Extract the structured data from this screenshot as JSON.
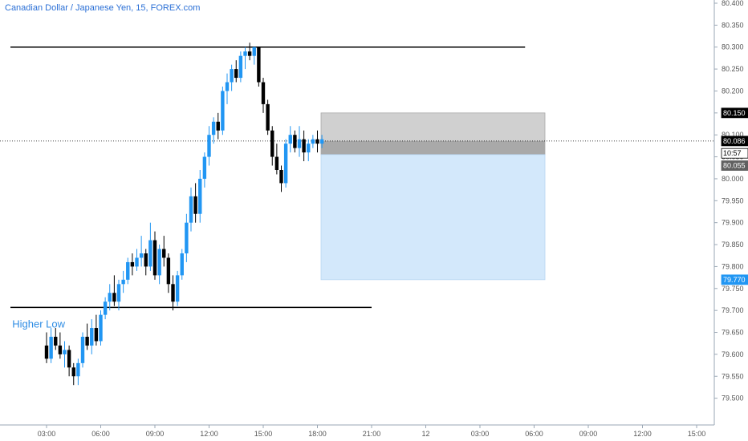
{
  "title": "Canadian Dollar / Japanese Yen, 15, FOREX.com",
  "chart_data": {
    "type": "candlestick",
    "ylim": [
      79.45,
      80.4
    ],
    "y_ticks": [
      "80.400",
      "80.350",
      "80.300",
      "80.250",
      "80.200",
      "80.150",
      "80.100",
      "80.050",
      "80.000",
      "79.950",
      "79.900",
      "79.850",
      "79.800",
      "79.750",
      "79.700",
      "79.650",
      "79.600",
      "79.550",
      "79.500"
    ],
    "x_ticks": [
      {
        "label": "03:00",
        "t": 0
      },
      {
        "label": "06:00",
        "t": 3
      },
      {
        "label": "09:00",
        "t": 6
      },
      {
        "label": "12:00",
        "t": 9
      },
      {
        "label": "15:00",
        "t": 12
      },
      {
        "label": "18:00",
        "t": 15
      },
      {
        "label": "21:00",
        "t": 18
      },
      {
        "label": "12",
        "t": 21
      },
      {
        "label": "03:00",
        "t": 24
      },
      {
        "label": "06:00",
        "t": 27
      },
      {
        "label": "09:00",
        "t": 30
      },
      {
        "label": "12:00",
        "t": 33
      },
      {
        "label": "15:00",
        "t": 36
      }
    ],
    "candle_colors": {
      "up": "#2196f3",
      "down": "#000000"
    },
    "candles": [
      [
        0.0,
        79.62,
        79.65,
        79.58,
        79.59
      ],
      [
        0.25,
        79.59,
        79.66,
        79.58,
        79.64
      ],
      [
        0.5,
        79.64,
        79.66,
        79.61,
        79.62
      ],
      [
        0.75,
        79.62,
        79.65,
        79.59,
        79.6
      ],
      [
        1.0,
        79.6,
        79.63,
        79.57,
        79.61
      ],
      [
        1.25,
        79.61,
        79.62,
        79.55,
        79.57
      ],
      [
        1.5,
        79.57,
        79.58,
        79.53,
        79.55
      ],
      [
        1.75,
        79.55,
        79.59,
        79.53,
        79.58
      ],
      [
        2.0,
        79.58,
        79.65,
        79.57,
        79.64
      ],
      [
        2.25,
        79.64,
        79.67,
        79.61,
        79.62
      ],
      [
        2.5,
        79.62,
        79.68,
        79.6,
        79.66
      ],
      [
        2.75,
        79.66,
        79.69,
        79.62,
        79.63
      ],
      [
        3.0,
        79.63,
        79.7,
        79.62,
        79.69
      ],
      [
        3.25,
        79.69,
        79.73,
        79.68,
        79.72
      ],
      [
        3.5,
        79.72,
        79.76,
        79.7,
        79.74
      ],
      [
        3.75,
        79.74,
        79.78,
        79.71,
        79.72
      ],
      [
        4.0,
        79.72,
        79.77,
        79.7,
        79.76
      ],
      [
        4.25,
        79.76,
        79.79,
        79.74,
        79.77
      ],
      [
        4.5,
        79.77,
        79.82,
        79.76,
        79.81
      ],
      [
        4.75,
        79.81,
        79.83,
        79.78,
        79.8
      ],
      [
        5.0,
        79.8,
        79.84,
        79.79,
        79.82
      ],
      [
        5.25,
        79.82,
        79.87,
        79.8,
        79.83
      ],
      [
        5.5,
        79.83,
        79.84,
        79.78,
        79.8
      ],
      [
        5.75,
        79.8,
        79.9,
        79.79,
        79.86
      ],
      [
        6.0,
        79.86,
        79.88,
        79.77,
        79.78
      ],
      [
        6.25,
        79.78,
        79.85,
        79.76,
        79.84
      ],
      [
        6.5,
        79.84,
        79.87,
        79.8,
        79.82
      ],
      [
        6.75,
        79.82,
        79.83,
        79.74,
        79.76
      ],
      [
        7.0,
        79.76,
        79.78,
        79.7,
        79.72
      ],
      [
        7.25,
        79.72,
        79.79,
        79.71,
        79.78
      ],
      [
        7.5,
        79.78,
        79.84,
        79.77,
        79.83
      ],
      [
        7.75,
        79.83,
        79.92,
        79.81,
        79.9
      ],
      [
        8.0,
        79.9,
        79.98,
        79.88,
        79.96
      ],
      [
        8.25,
        79.96,
        79.99,
        79.9,
        79.92
      ],
      [
        8.5,
        79.92,
        80.02,
        79.9,
        80.0
      ],
      [
        8.75,
        80.0,
        80.06,
        79.98,
        80.05
      ],
      [
        9.0,
        80.05,
        80.12,
        80.03,
        80.1
      ],
      [
        9.25,
        80.1,
        80.14,
        80.08,
        80.13
      ],
      [
        9.5,
        80.13,
        80.15,
        80.09,
        80.11
      ],
      [
        9.75,
        80.11,
        80.21,
        80.1,
        80.2
      ],
      [
        10.0,
        80.2,
        80.24,
        80.17,
        80.22
      ],
      [
        10.25,
        80.22,
        80.26,
        80.2,
        80.25
      ],
      [
        10.5,
        80.25,
        80.27,
        80.22,
        80.23
      ],
      [
        10.75,
        80.23,
        80.29,
        80.22,
        80.28
      ],
      [
        11.0,
        80.28,
        80.3,
        80.25,
        80.29
      ],
      [
        11.25,
        80.29,
        80.31,
        80.27,
        80.28
      ],
      [
        11.5,
        80.28,
        80.3,
        80.26,
        80.3
      ],
      [
        11.75,
        80.3,
        80.3,
        80.21,
        80.22
      ],
      [
        12.0,
        80.22,
        80.23,
        80.15,
        80.17
      ],
      [
        12.25,
        80.17,
        80.18,
        80.1,
        80.11
      ],
      [
        12.5,
        80.11,
        80.12,
        80.03,
        80.05
      ],
      [
        12.75,
        80.05,
        80.08,
        80.01,
        80.02
      ],
      [
        13.0,
        80.02,
        80.03,
        79.97,
        79.99
      ],
      [
        13.25,
        79.99,
        80.09,
        79.98,
        80.08
      ],
      [
        13.5,
        80.08,
        80.12,
        80.06,
        80.1
      ],
      [
        13.75,
        80.1,
        80.11,
        80.06,
        80.07
      ],
      [
        14.0,
        80.07,
        80.12,
        80.05,
        80.09
      ],
      [
        14.25,
        80.09,
        80.11,
        80.04,
        80.06
      ],
      [
        14.5,
        80.06,
        80.09,
        80.04,
        80.08
      ],
      [
        14.75,
        80.08,
        80.1,
        80.07,
        80.09
      ],
      [
        15.0,
        80.09,
        80.11,
        80.06,
        80.08
      ],
      [
        15.25,
        80.08,
        80.1,
        80.07,
        80.09
      ]
    ],
    "horizontal_lines": [
      {
        "price": 80.3,
        "t_from": -2,
        "t_to": 26.5
      },
      {
        "price": 79.707,
        "t_from": -2,
        "t_to": 18
      }
    ],
    "position": {
      "t_from": 15.2,
      "t_to": 27.6,
      "stop_top": 80.15,
      "entry": 80.055,
      "target": 79.77,
      "current": 80.086,
      "stop_color": "#c8c8c8",
      "entry_fill": "#a9a9a9",
      "target_color": "#d3e8fb"
    },
    "price_tags": [
      {
        "label": "80.150",
        "price": 80.15,
        "bg": "#000000",
        "fg": "#ffffff"
      },
      {
        "label": "80.086",
        "price": 80.086,
        "bg": "#000000",
        "fg": "#ffffff"
      },
      {
        "label": "10:57",
        "price": 80.058,
        "bg": "#ffffff",
        "fg": "#000000",
        "border": "#000000"
      },
      {
        "label": "80.055",
        "price": 80.03,
        "bg": "#606060",
        "fg": "#ffffff"
      },
      {
        "label": "79.770",
        "price": 79.77,
        "bg": "#2196f3",
        "fg": "#ffffff"
      }
    ],
    "annotation": {
      "text": "Higher Low",
      "t": -1.9,
      "price": 79.67
    }
  }
}
